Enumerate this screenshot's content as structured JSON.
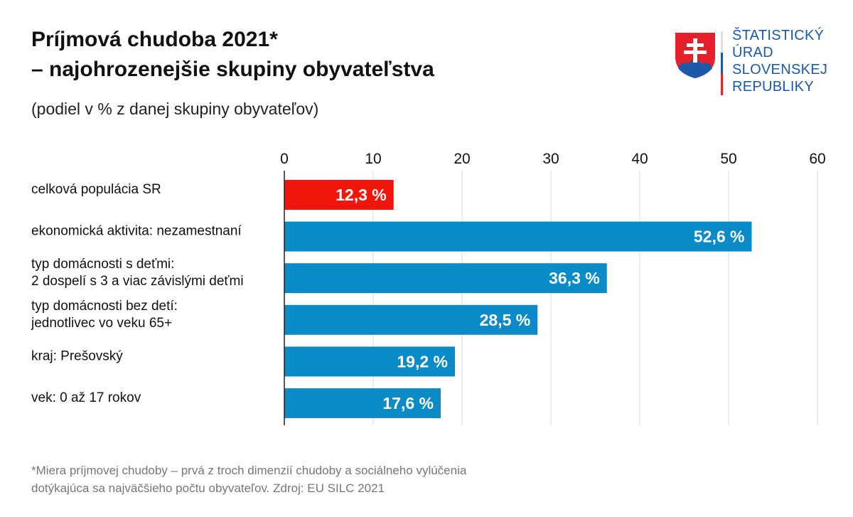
{
  "header": {
    "title_line1": "Príjmová chudoba 2021*",
    "title_line2": "– najohrozenejšie skupiny obyvateľstva",
    "subtitle": "(podiel v % z danej skupiny obyvateľov)"
  },
  "logo": {
    "lines": [
      "ŠTATISTICKÝ",
      "ÚRAD",
      "SLOVENSKEJ",
      "REPUBLIKY"
    ],
    "emblem": "slovak-coat-of-arms"
  },
  "footnote": {
    "line1": "*Miera príjmovej chudoby – prvá z troch dimenzií chudoby a sociálneho vylúčenia",
    "line2": "dotýkajúca sa najväčšieho počtu obyvateľov. Zdroj: EU SILC 2021"
  },
  "chart_data": {
    "type": "bar",
    "orientation": "horizontal",
    "categories": [
      [
        "celková populácia SR"
      ],
      [
        "ekonomická aktivita: nezamestnaní"
      ],
      [
        "typ domácnosti s deťmi:",
        "2 dospelí s 3 a viac závislými deťmi"
      ],
      [
        "typ domácnosti bez detí:",
        "jednotlivec vo veku 65+"
      ],
      [
        "kraj: Prešovský"
      ],
      [
        "vek: 0 až 17 rokov"
      ]
    ],
    "values": [
      12.3,
      52.6,
      36.3,
      28.5,
      19.2,
      17.6
    ],
    "data_labels": [
      "12,3 %",
      "52,6 %",
      "36,3 %",
      "28,5 %",
      "19,2 %",
      "17,6 %"
    ],
    "colors": [
      "#f2150b",
      "#0a8bc8",
      "#0a8bc8",
      "#0a8bc8",
      "#0a8bc8",
      "#0a8bc8"
    ],
    "xlim": [
      0,
      60
    ],
    "xticks": [
      0,
      10,
      20,
      30,
      40,
      50,
      60
    ],
    "x_axis_position": "top",
    "grid": true
  }
}
